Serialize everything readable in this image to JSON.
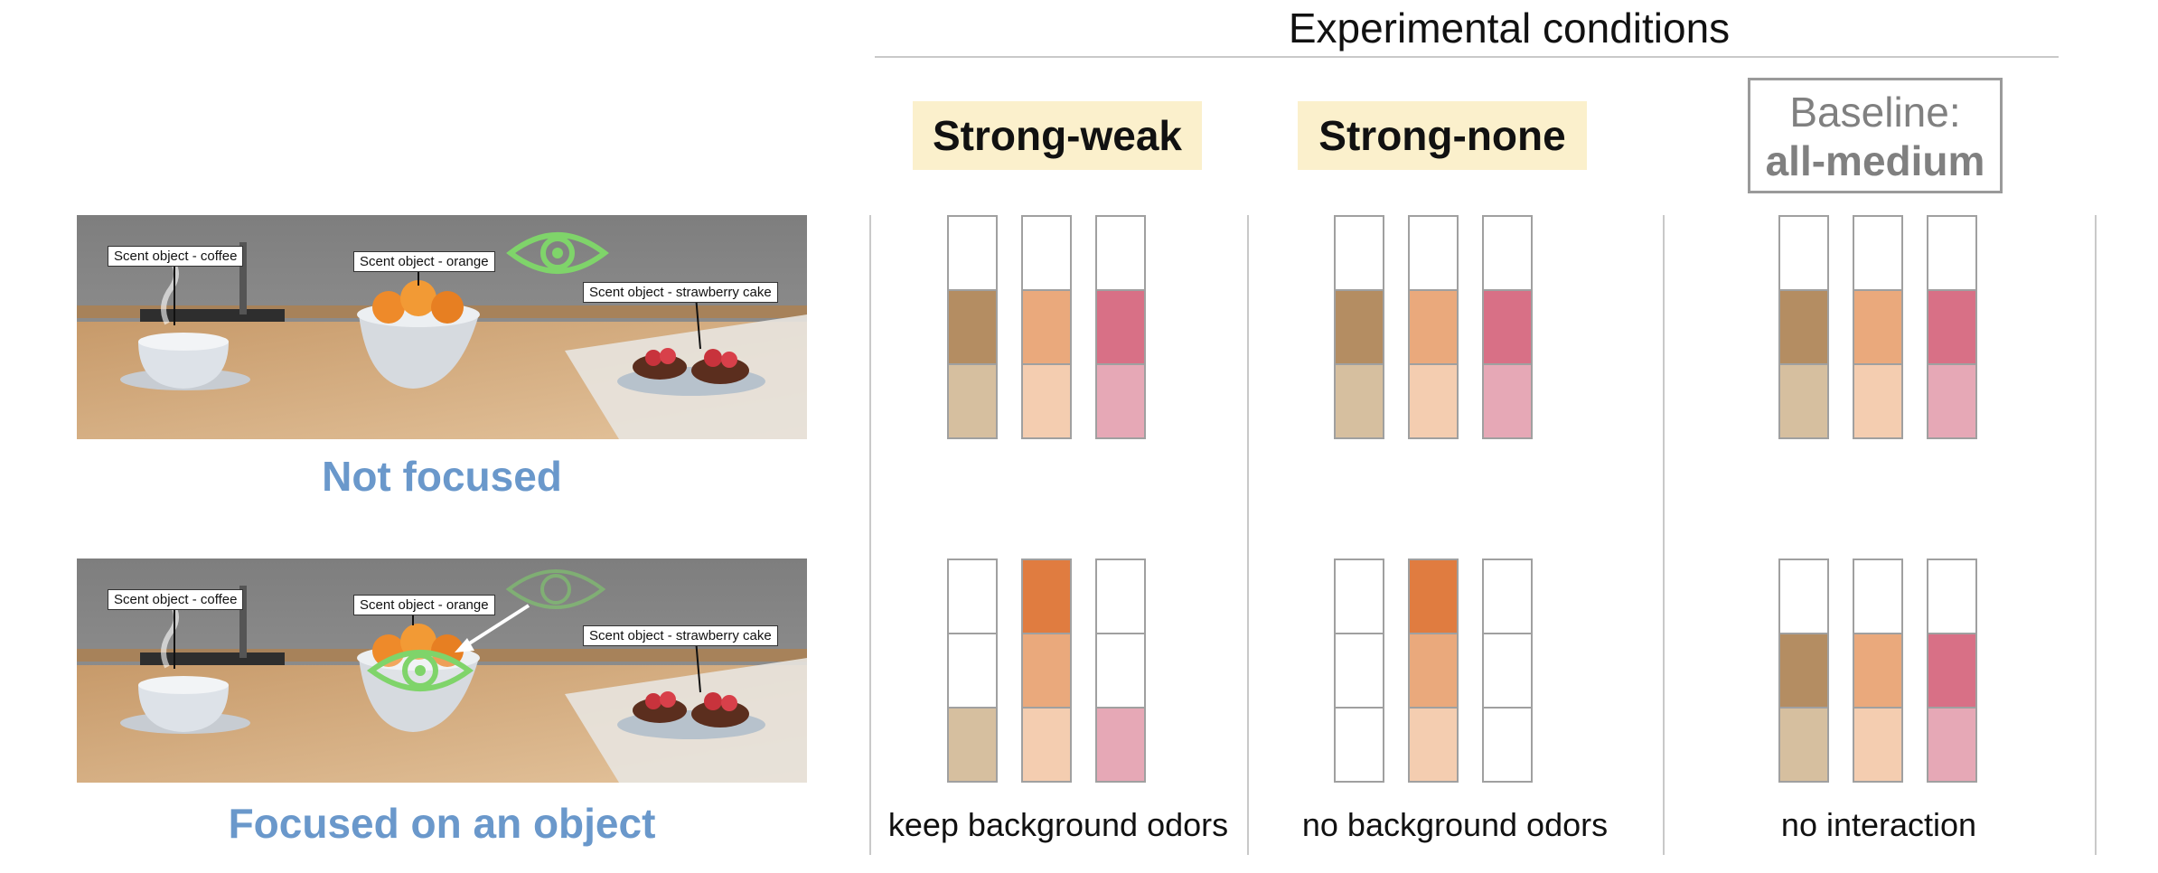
{
  "header": {
    "title": "Experimental conditions"
  },
  "conditions": [
    {
      "label": "Strong-weak",
      "caption": "keep background odors"
    },
    {
      "label": "Strong-none",
      "caption": "no background odors"
    },
    {
      "label_line1": "Baseline:",
      "label_line2": "all-medium",
      "caption": "no interaction"
    }
  ],
  "scenes": {
    "not_focused": {
      "label": "Not focused",
      "tags": [
        "Scent object - coffee",
        "Scent object - orange",
        "Scent object - strawberry cake"
      ]
    },
    "focused": {
      "label": "Focused on an object",
      "tags": [
        "Scent object - coffee",
        "Scent object - orange",
        "Scent object - strawberry cake"
      ]
    }
  },
  "colors": {
    "coffee_strong": "#b48d62",
    "coffee_medium": "#d6bf9f",
    "orange_strong": "#e07c40",
    "orange_medium": "#eaa97c",
    "orange_light": "#f4cdb0",
    "strawberry_strong": "#d87086",
    "strawberry_medium": "#e6a8b6",
    "empty": "#ffffff",
    "highlight": "#fbf0cc",
    "accent_text": "#6a98cb",
    "gaze_icon": "#7fd46a"
  }
}
